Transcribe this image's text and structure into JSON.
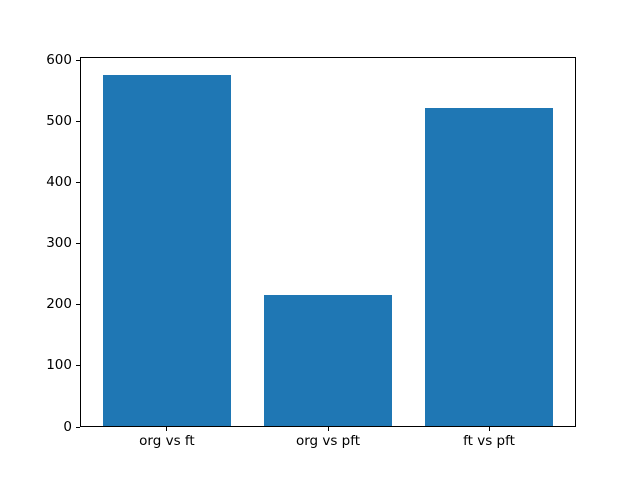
{
  "chart_data": {
    "type": "bar",
    "categories": [
      "org vs ft",
      "org vs pft",
      "ft vs pft"
    ],
    "values": [
      575,
      215,
      521
    ],
    "title": "",
    "xlabel": "",
    "ylabel": "",
    "ylim": [
      0,
      605
    ],
    "yticks": [
      0,
      100,
      200,
      300,
      400,
      500,
      600
    ],
    "bar_color": "#1f77b4",
    "spine_color": "#000000",
    "background_color": "#ffffff",
    "grid": false,
    "legend": "none"
  }
}
